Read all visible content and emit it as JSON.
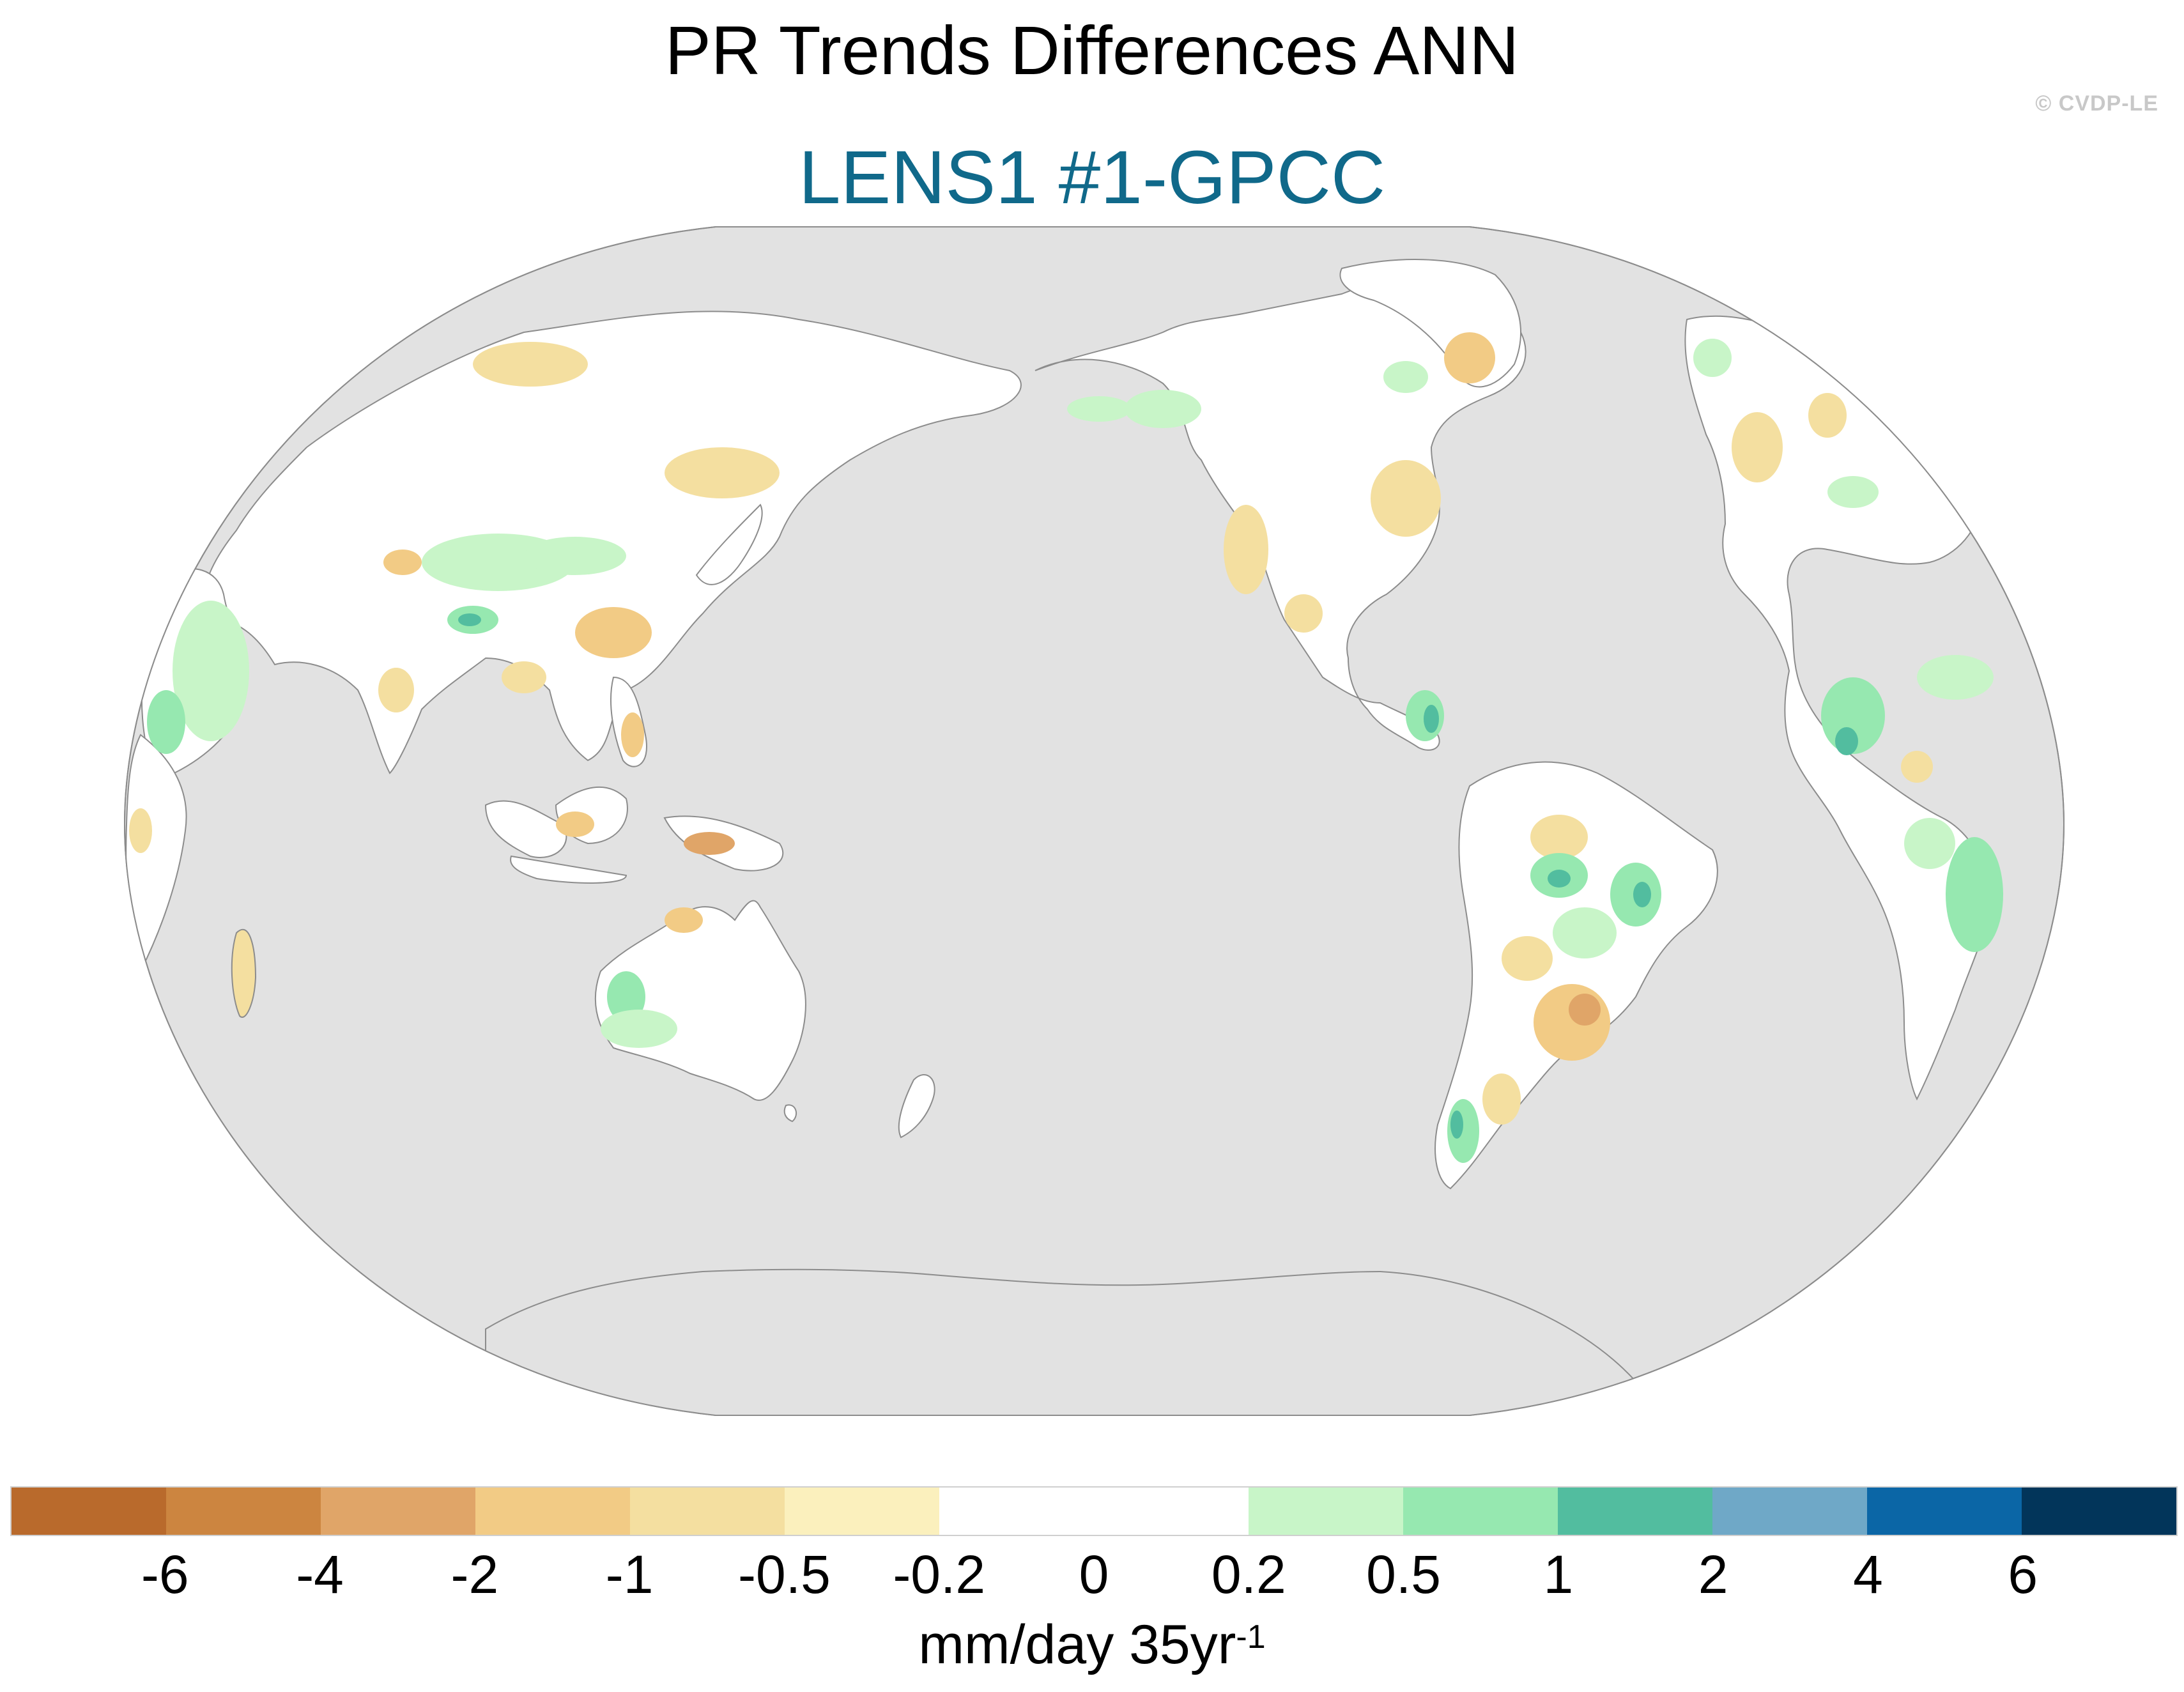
{
  "header": {
    "title": "PR Trends Differences ANN",
    "subtitle": "LENS1 #1-GPCC",
    "watermark": "© CVDP-LE"
  },
  "colors": {
    "subtitle": "#10698a",
    "watermark": "#c8c8c8",
    "ocean": "#e2e2e2",
    "coastline": "#8c8c8c",
    "land_neutral": "#ffffff"
  },
  "colorbar": {
    "colors": [
      "#b96a2c",
      "#cc8540",
      "#e0a568",
      "#f2cb85",
      "#f4dfa0",
      "#fbf0bd",
      "#ffffff",
      "#ffffff",
      "#c8f5c8",
      "#96e8b0",
      "#52bd9f",
      "#6fa8c7",
      "#0b66a6",
      "#02355a"
    ],
    "ticks": [
      "-6",
      "-4",
      "-2",
      "-1",
      "-0.5",
      "-0.2",
      "0",
      "0.2",
      "0.5",
      "1",
      "2",
      "4",
      "6"
    ],
    "units_main": "mm/day 35yr",
    "units_sup": "-1"
  },
  "map": {
    "projection": "Winkel-like pseudocylindrical",
    "central_longitude": 180,
    "continents": [
      "Eurasia",
      "North America",
      "South America",
      "Africa",
      "Australia",
      "Antarctica"
    ]
  }
}
